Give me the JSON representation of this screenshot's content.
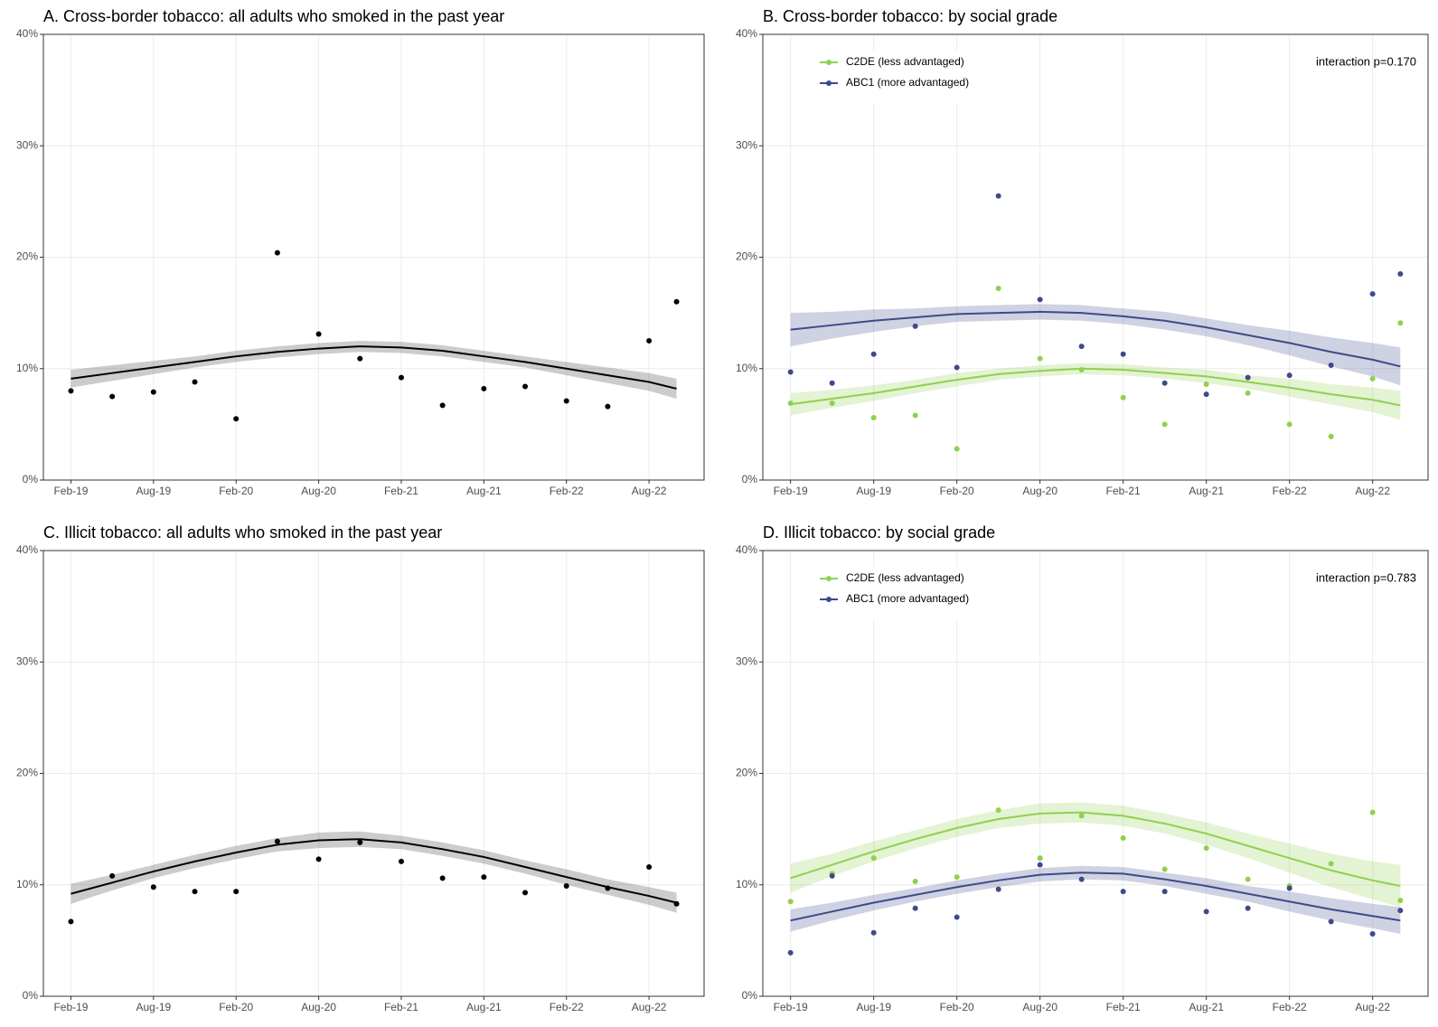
{
  "chart_data": [
    {
      "type": "scatter-smooth",
      "title": "A. Cross-border tobacco: all adults who smoked in the past year",
      "x": [
        "2019-02",
        "2019-05",
        "2019-08",
        "2019-11",
        "2020-02",
        "2020-05",
        "2020-08",
        "2020-11",
        "2021-02",
        "2021-05",
        "2021-08",
        "2021-11",
        "2022-02",
        "2022-05",
        "2022-08",
        "2022-10"
      ],
      "xlim": [
        "2018-12",
        "2022-12"
      ],
      "xticks": [
        {
          "value": "2019-02",
          "label": "Feb-19"
        },
        {
          "value": "2019-08",
          "label": "Aug-19"
        },
        {
          "value": "2020-02",
          "label": "Feb-20"
        },
        {
          "value": "2020-08",
          "label": "Aug-20"
        },
        {
          "value": "2021-02",
          "label": "Feb-21"
        },
        {
          "value": "2021-08",
          "label": "Aug-21"
        },
        {
          "value": "2022-02",
          "label": "Feb-22"
        },
        {
          "value": "2022-08",
          "label": "Aug-22"
        }
      ],
      "ylim": [
        0,
        40
      ],
      "yticks": [
        {
          "value": 0,
          "label": "0%"
        },
        {
          "value": 10,
          "label": "10%"
        },
        {
          "value": 20,
          "label": "20%"
        },
        {
          "value": 30,
          "label": "30%"
        },
        {
          "value": 40,
          "label": "40%"
        }
      ],
      "grid": true,
      "series": [
        {
          "color": "#000000",
          "values": [
            8.0,
            7.5,
            7.9,
            8.8,
            5.5,
            20.4,
            13.1,
            10.9,
            9.2,
            6.7,
            8.2,
            8.4,
            7.1,
            6.6,
            12.5,
            16.0
          ],
          "fit": [
            9.1,
            9.6,
            10.1,
            10.6,
            11.1,
            11.5,
            11.8,
            12.0,
            11.9,
            11.6,
            11.1,
            10.6,
            10.0,
            9.4,
            8.8,
            8.2
          ],
          "fit_lower": [
            8.3,
            8.9,
            9.5,
            10.1,
            10.6,
            11.0,
            11.3,
            11.5,
            11.4,
            11.1,
            10.6,
            10.1,
            9.4,
            8.7,
            8.0,
            7.3
          ],
          "fit_upper": [
            9.9,
            10.3,
            10.7,
            11.1,
            11.6,
            12.0,
            12.3,
            12.5,
            12.4,
            12.1,
            11.6,
            11.1,
            10.6,
            10.1,
            9.6,
            9.1
          ]
        }
      ]
    },
    {
      "type": "scatter-smooth",
      "title": "B. Cross-border tobacco: by social grade",
      "x": [
        "2019-02",
        "2019-05",
        "2019-08",
        "2019-11",
        "2020-02",
        "2020-05",
        "2020-08",
        "2020-11",
        "2021-02",
        "2021-05",
        "2021-08",
        "2021-11",
        "2022-02",
        "2022-05",
        "2022-08",
        "2022-10"
      ],
      "xlim": [
        "2018-12",
        "2022-12"
      ],
      "xticks": [
        {
          "value": "2019-02",
          "label": "Feb-19"
        },
        {
          "value": "2019-08",
          "label": "Aug-19"
        },
        {
          "value": "2020-02",
          "label": "Feb-20"
        },
        {
          "value": "2020-08",
          "label": "Aug-20"
        },
        {
          "value": "2021-02",
          "label": "Feb-21"
        },
        {
          "value": "2021-08",
          "label": "Aug-21"
        },
        {
          "value": "2022-02",
          "label": "Feb-22"
        },
        {
          "value": "2022-08",
          "label": "Aug-22"
        }
      ],
      "ylim": [
        0,
        40
      ],
      "yticks": [
        {
          "value": 0,
          "label": "0%"
        },
        {
          "value": 10,
          "label": "10%"
        },
        {
          "value": 20,
          "label": "20%"
        },
        {
          "value": 30,
          "label": "30%"
        },
        {
          "value": 40,
          "label": "40%"
        }
      ],
      "grid": true,
      "legend": "top-left",
      "annotation": "interaction p=0.170",
      "series": [
        {
          "name": "C2DE (less advantaged)",
          "color": "#8fd14f",
          "values": [
            6.9,
            6.9,
            5.6,
            5.8,
            2.8,
            17.2,
            10.9,
            9.9,
            7.4,
            5.0,
            8.6,
            7.8,
            5.0,
            3.9,
            9.1,
            14.1
          ],
          "fit": [
            6.8,
            7.3,
            7.8,
            8.4,
            9.0,
            9.5,
            9.8,
            10.0,
            9.9,
            9.6,
            9.3,
            8.8,
            8.3,
            7.7,
            7.2,
            6.7
          ],
          "fit_lower": [
            5.8,
            6.5,
            7.1,
            7.8,
            8.4,
            9.0,
            9.3,
            9.5,
            9.4,
            9.1,
            8.7,
            8.2,
            7.5,
            6.8,
            6.1,
            5.4
          ],
          "fit_upper": [
            7.8,
            8.1,
            8.5,
            9.0,
            9.6,
            10.0,
            10.3,
            10.5,
            10.4,
            10.1,
            9.9,
            9.4,
            9.1,
            8.6,
            8.3,
            8.0
          ]
        },
        {
          "name": "ABC1 (more advantaged)",
          "color": "#3f4a8a",
          "values": [
            9.7,
            8.7,
            11.3,
            13.8,
            10.1,
            25.5,
            16.2,
            12.0,
            11.3,
            8.7,
            7.7,
            9.2,
            9.4,
            10.3,
            16.7,
            18.5
          ],
          "fit": [
            13.5,
            13.9,
            14.3,
            14.6,
            14.9,
            15.0,
            15.1,
            15.0,
            14.7,
            14.3,
            13.7,
            13.0,
            12.3,
            11.5,
            10.8,
            10.2
          ],
          "fit_lower": [
            12.0,
            12.7,
            13.3,
            13.8,
            14.2,
            14.3,
            14.4,
            14.3,
            14.0,
            13.5,
            12.9,
            12.1,
            11.2,
            10.2,
            9.3,
            8.5
          ],
          "fit_upper": [
            15.0,
            15.1,
            15.3,
            15.4,
            15.6,
            15.7,
            15.8,
            15.7,
            15.4,
            15.1,
            14.5,
            13.9,
            13.4,
            12.8,
            12.3,
            11.9
          ]
        }
      ]
    },
    {
      "type": "scatter-smooth",
      "title": "C. Illicit tobacco: all adults who smoked in the past year",
      "x": [
        "2019-02",
        "2019-05",
        "2019-08",
        "2019-11",
        "2020-02",
        "2020-05",
        "2020-08",
        "2020-11",
        "2021-02",
        "2021-05",
        "2021-08",
        "2021-11",
        "2022-02",
        "2022-05",
        "2022-08",
        "2022-10"
      ],
      "xlim": [
        "2018-12",
        "2022-12"
      ],
      "xticks": [
        {
          "value": "2019-02",
          "label": "Feb-19"
        },
        {
          "value": "2019-08",
          "label": "Aug-19"
        },
        {
          "value": "2020-02",
          "label": "Feb-20"
        },
        {
          "value": "2020-08",
          "label": "Aug-20"
        },
        {
          "value": "2021-02",
          "label": "Feb-21"
        },
        {
          "value": "2021-08",
          "label": "Aug-21"
        },
        {
          "value": "2022-02",
          "label": "Feb-22"
        },
        {
          "value": "2022-08",
          "label": "Aug-22"
        }
      ],
      "ylim": [
        0,
        40
      ],
      "yticks": [
        {
          "value": 0,
          "label": "0%"
        },
        {
          "value": 10,
          "label": "10%"
        },
        {
          "value": 20,
          "label": "20%"
        },
        {
          "value": 30,
          "label": "30%"
        },
        {
          "value": 40,
          "label": "40%"
        }
      ],
      "grid": true,
      "series": [
        {
          "color": "#000000",
          "values": [
            6.7,
            10.8,
            9.8,
            9.4,
            9.4,
            13.9,
            12.3,
            13.8,
            12.1,
            10.6,
            10.7,
            9.3,
            9.9,
            9.7,
            11.6,
            8.3
          ],
          "fit": [
            9.2,
            10.2,
            11.2,
            12.1,
            12.9,
            13.6,
            14.0,
            14.1,
            13.8,
            13.2,
            12.5,
            11.6,
            10.7,
            9.8,
            9.0,
            8.4
          ],
          "fit_lower": [
            8.3,
            9.5,
            10.6,
            11.5,
            12.3,
            13.0,
            13.3,
            13.4,
            13.2,
            12.6,
            11.9,
            11.0,
            10.0,
            9.1,
            8.2,
            7.5
          ],
          "fit_upper": [
            10.1,
            10.9,
            11.8,
            12.7,
            13.5,
            14.2,
            14.7,
            14.8,
            14.4,
            13.8,
            13.1,
            12.2,
            11.4,
            10.5,
            9.8,
            9.3
          ]
        }
      ]
    },
    {
      "type": "scatter-smooth",
      "title": "D. Illicit tobacco: by social grade",
      "x": [
        "2019-02",
        "2019-05",
        "2019-08",
        "2019-11",
        "2020-02",
        "2020-05",
        "2020-08",
        "2020-11",
        "2021-02",
        "2021-05",
        "2021-08",
        "2021-11",
        "2022-02",
        "2022-05",
        "2022-08",
        "2022-10"
      ],
      "xlim": [
        "2018-12",
        "2022-12"
      ],
      "xticks": [
        {
          "value": "2019-02",
          "label": "Feb-19"
        },
        {
          "value": "2019-08",
          "label": "Aug-19"
        },
        {
          "value": "2020-02",
          "label": "Feb-20"
        },
        {
          "value": "2020-08",
          "label": "Aug-20"
        },
        {
          "value": "2021-02",
          "label": "Feb-21"
        },
        {
          "value": "2021-08",
          "label": "Aug-21"
        },
        {
          "value": "2022-02",
          "label": "Feb-22"
        },
        {
          "value": "2022-08",
          "label": "Aug-22"
        }
      ],
      "ylim": [
        0,
        40
      ],
      "yticks": [
        {
          "value": 0,
          "label": "0%"
        },
        {
          "value": 10,
          "label": "10%"
        },
        {
          "value": 20,
          "label": "20%"
        },
        {
          "value": 30,
          "label": "30%"
        },
        {
          "value": 40,
          "label": "40%"
        }
      ],
      "grid": true,
      "legend": "top-left",
      "annotation": "interaction p=0.783",
      "series": [
        {
          "name": "C2DE (less advantaged)",
          "color": "#8fd14f",
          "values": [
            8.5,
            11.0,
            12.4,
            10.3,
            10.7,
            16.7,
            12.4,
            16.2,
            14.2,
            11.4,
            13.3,
            10.5,
            9.9,
            11.9,
            16.5,
            8.6
          ],
          "fit": [
            10.6,
            11.8,
            13.0,
            14.1,
            15.1,
            15.9,
            16.4,
            16.5,
            16.2,
            15.5,
            14.6,
            13.5,
            12.4,
            11.3,
            10.4,
            9.9
          ],
          "fit_lower": [
            9.3,
            10.8,
            12.1,
            13.3,
            14.3,
            15.1,
            15.5,
            15.6,
            15.3,
            14.6,
            13.6,
            12.4,
            11.1,
            9.8,
            8.7,
            8.0
          ],
          "fit_upper": [
            11.9,
            12.8,
            13.9,
            14.9,
            15.9,
            16.7,
            17.3,
            17.4,
            17.1,
            16.4,
            15.6,
            14.6,
            13.7,
            12.8,
            12.1,
            11.8
          ]
        },
        {
          "name": "ABC1 (more advantaged)",
          "color": "#3f4a8a",
          "values": [
            3.9,
            10.8,
            5.7,
            7.9,
            7.1,
            9.6,
            11.8,
            10.5,
            9.4,
            9.4,
            7.6,
            7.9,
            9.7,
            6.7,
            5.6,
            7.7
          ],
          "fit": [
            6.8,
            7.6,
            8.4,
            9.1,
            9.8,
            10.4,
            10.9,
            11.1,
            11.0,
            10.5,
            9.9,
            9.2,
            8.5,
            7.8,
            7.2,
            6.8
          ],
          "fit_lower": [
            5.8,
            6.8,
            7.7,
            8.5,
            9.2,
            9.8,
            10.3,
            10.5,
            10.4,
            9.9,
            9.2,
            8.5,
            7.6,
            6.8,
            6.1,
            5.6
          ],
          "fit_upper": [
            7.8,
            8.4,
            9.1,
            9.7,
            10.4,
            11.0,
            11.5,
            11.7,
            11.6,
            11.1,
            10.6,
            9.9,
            9.4,
            8.8,
            8.3,
            8.0
          ]
        }
      ]
    }
  ]
}
